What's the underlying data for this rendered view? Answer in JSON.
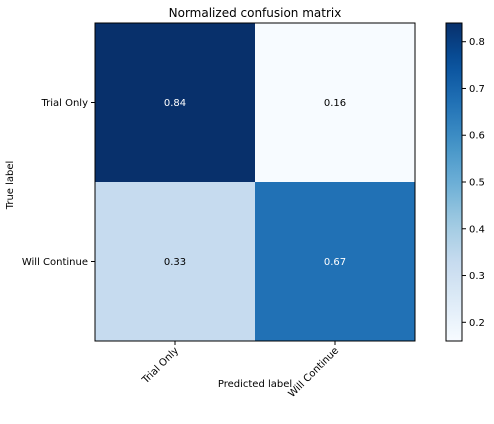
{
  "chart_data": {
    "type": "heatmap",
    "title": "Normalized confusion matrix",
    "xlabel": "Predicted label",
    "ylabel": "True label",
    "x_categories": [
      "Trial Only",
      "Will Continue"
    ],
    "y_categories": [
      "Trial Only",
      "Will Continue"
    ],
    "values": [
      [
        0.84,
        0.16
      ],
      [
        0.33,
        0.67
      ]
    ],
    "cell_text": [
      [
        "0.84",
        "0.16"
      ],
      [
        "0.33",
        "0.67"
      ]
    ],
    "colormap": "Blues",
    "color_range": [
      0.16,
      0.84
    ],
    "colorbar": {
      "ticks": [
        0.2,
        0.3,
        0.4,
        0.5,
        0.6,
        0.7,
        0.8
      ],
      "tick_labels": [
        "0.2",
        "0.3",
        "0.4",
        "0.5",
        "0.6",
        "0.7",
        "0.8"
      ]
    },
    "legend": "none",
    "grid": false
  }
}
